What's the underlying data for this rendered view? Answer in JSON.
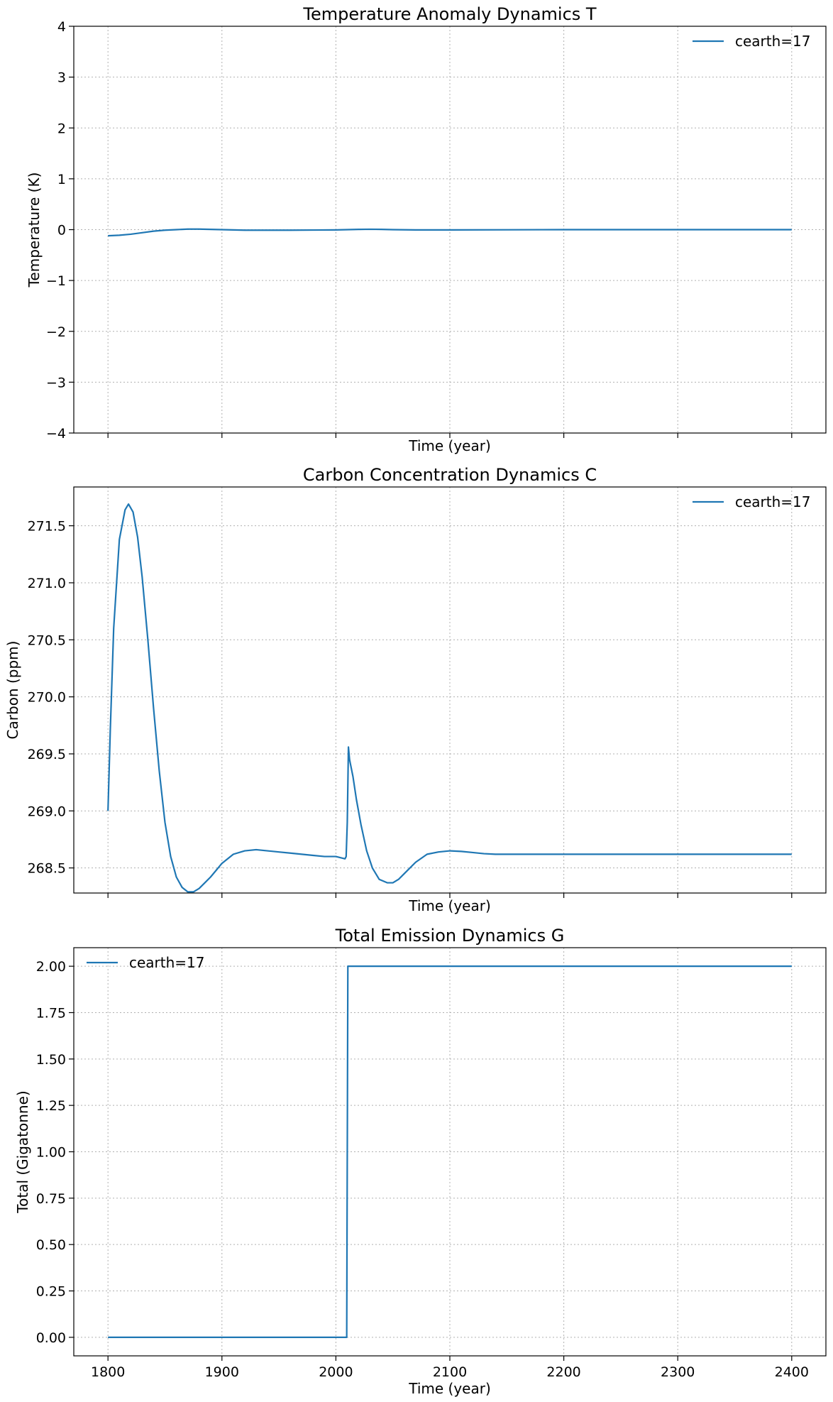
{
  "chart_data": [
    {
      "type": "line",
      "title": "Temperature Anomaly Dynamics T",
      "xlabel": "Time (year)",
      "ylabel": "Temperature (K)",
      "xlim": [
        1770,
        2430
      ],
      "ylim": [
        -4,
        4
      ],
      "xticks": [
        1800,
        1900,
        2000,
        2100,
        2200,
        2300,
        2400
      ],
      "show_xtick_labels": false,
      "yticks": [
        -4,
        -3,
        -2,
        -1,
        0,
        1,
        2,
        3,
        4
      ],
      "ytick_labels": [
        "−4",
        "−3",
        "−2",
        "−1",
        "0",
        "1",
        "2",
        "3",
        "4"
      ],
      "grid": true,
      "legend": "top-right",
      "series": [
        {
          "name": "cearth=17",
          "color": "#1f77b4",
          "x": [
            1800,
            1810,
            1820,
            1830,
            1840,
            1850,
            1860,
            1870,
            1880,
            1890,
            1900,
            1920,
            1940,
            1960,
            1980,
            2000,
            2010,
            2020,
            2030,
            2040,
            2050,
            2070,
            2100,
            2150,
            2200,
            2300,
            2400
          ],
          "y": [
            -0.12,
            -0.11,
            -0.09,
            -0.06,
            -0.03,
            -0.01,
            0.0,
            0.01,
            0.01,
            0.005,
            0.0,
            -0.01,
            -0.01,
            -0.01,
            -0.008,
            -0.005,
            0.0,
            0.005,
            0.008,
            0.005,
            0.0,
            -0.005,
            -0.005,
            -0.003,
            0.0,
            0.0,
            0.0
          ]
        }
      ]
    },
    {
      "type": "line",
      "title": "Carbon Concentration Dynamics C",
      "xlabel": "Time (year)",
      "ylabel": "Carbon (ppm)",
      "xlim": [
        1770,
        2430
      ],
      "ylim": [
        268.28,
        271.84
      ],
      "xticks": [
        1800,
        1900,
        2000,
        2100,
        2200,
        2300,
        2400
      ],
      "show_xtick_labels": false,
      "yticks": [
        268.5,
        269.0,
        269.5,
        270.0,
        270.5,
        271.0,
        271.5
      ],
      "ytick_labels": [
        "268.5",
        "269.0",
        "269.5",
        "270.0",
        "270.5",
        "271.0",
        "271.5"
      ],
      "grid": true,
      "legend": "top-right",
      "series": [
        {
          "name": "cearth=17",
          "color": "#1f77b4",
          "x": [
            1800,
            1802,
            1805,
            1810,
            1815,
            1818,
            1822,
            1826,
            1830,
            1835,
            1840,
            1845,
            1850,
            1855,
            1860,
            1865,
            1870,
            1875,
            1880,
            1885,
            1890,
            1895,
            1900,
            1910,
            1920,
            1930,
            1940,
            1950,
            1960,
            1970,
            1980,
            1990,
            2000,
            2008,
            2009,
            2010,
            2011,
            2012,
            2013,
            2015,
            2018,
            2022,
            2027,
            2032,
            2038,
            2045,
            2050,
            2055,
            2060,
            2070,
            2080,
            2090,
            2100,
            2110,
            2120,
            2130,
            2140,
            2150,
            2170,
            2200,
            2250,
            2300,
            2400
          ],
          "y": [
            269.0,
            269.7,
            270.6,
            271.38,
            271.64,
            271.69,
            271.62,
            271.4,
            271.05,
            270.5,
            269.9,
            269.35,
            268.9,
            268.6,
            268.42,
            268.33,
            268.29,
            268.29,
            268.32,
            268.37,
            268.42,
            268.48,
            268.54,
            268.62,
            268.65,
            268.66,
            268.65,
            268.64,
            268.63,
            268.62,
            268.61,
            268.6,
            268.6,
            268.58,
            268.6,
            268.9,
            269.56,
            269.45,
            269.4,
            269.3,
            269.1,
            268.88,
            268.65,
            268.5,
            268.4,
            268.37,
            268.37,
            268.4,
            268.45,
            268.55,
            268.62,
            268.64,
            268.65,
            268.645,
            268.635,
            268.625,
            268.62,
            268.62,
            268.62,
            268.62,
            268.62,
            268.62,
            268.62
          ]
        }
      ]
    },
    {
      "type": "line",
      "title": "Total Emission Dynamics G",
      "xlabel": "Time (year)",
      "ylabel": "Total (Gigatonne)",
      "xlim": [
        1770,
        2430
      ],
      "ylim": [
        -0.1,
        2.1
      ],
      "xticks": [
        1800,
        1900,
        2000,
        2100,
        2200,
        2300,
        2400
      ],
      "show_xtick_labels": true,
      "xtick_labels": [
        "1800",
        "1900",
        "2000",
        "2100",
        "2200",
        "2300",
        "2400"
      ],
      "yticks": [
        0.0,
        0.25,
        0.5,
        0.75,
        1.0,
        1.25,
        1.5,
        1.75,
        2.0
      ],
      "ytick_labels": [
        "0.00",
        "0.25",
        "0.50",
        "0.75",
        "1.00",
        "1.25",
        "1.50",
        "1.75",
        "2.00"
      ],
      "grid": true,
      "legend": "top-left",
      "series": [
        {
          "name": "cearth=17",
          "color": "#1f77b4",
          "x": [
            1800,
            2009.5,
            2010.5,
            2400
          ],
          "y": [
            0.0,
            0.0,
            2.0,
            2.0
          ]
        }
      ]
    }
  ]
}
